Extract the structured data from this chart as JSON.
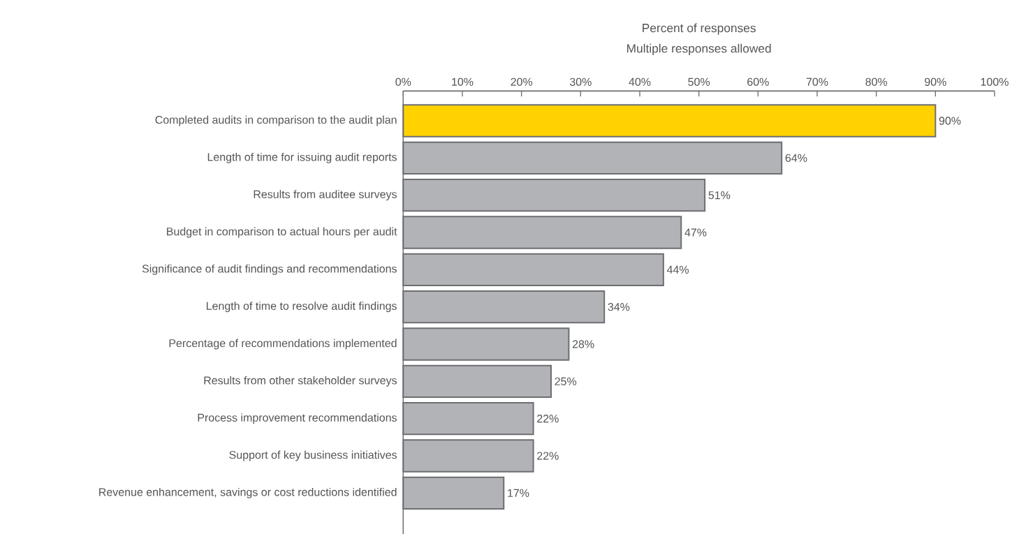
{
  "chart_data": {
    "type": "bar",
    "orientation": "horizontal",
    "xlabel": "Percent of responses",
    "subtitle": "Multiple responses allowed",
    "categories": [
      "Completed audits in comparison to the audit plan",
      "Length of time for issuing audit reports",
      "Results from auditee surveys",
      "Budget in comparison to actual hours per audit",
      "Significance of audit findings and recommendations",
      "Length of time to resolve audit findings",
      "Percentage of recommendations implemented",
      "Results from other stakeholder surveys",
      "Process improvement recommendations",
      "Support of key business initiatives",
      "Revenue enhancement, savings or cost reductions identified"
    ],
    "values": [
      90,
      64,
      51,
      47,
      44,
      34,
      28,
      25,
      22,
      22,
      17
    ],
    "value_labels": [
      "90%",
      "64%",
      "51%",
      "47%",
      "44%",
      "34%",
      "28%",
      "25%",
      "22%",
      "22%",
      "17%"
    ],
    "colors": [
      "#ffd200",
      "#b1b3b6",
      "#b1b3b6",
      "#b1b3b6",
      "#b1b3b6",
      "#b1b3b6",
      "#b1b3b6",
      "#b1b3b6",
      "#b1b3b6",
      "#b1b3b6",
      "#b1b3b6"
    ],
    "xlim": [
      0,
      100
    ],
    "xticks": [
      {
        "value": 0,
        "label": "0%"
      },
      {
        "value": 10,
        "label": "10%"
      },
      {
        "value": 20,
        "label": "20%"
      },
      {
        "value": 30,
        "label": "30%"
      },
      {
        "value": 40,
        "label": "40%"
      },
      {
        "value": 50,
        "label": "50%"
      },
      {
        "value": 60,
        "label": "60%"
      },
      {
        "value": 70,
        "label": "70%"
      },
      {
        "value": 80,
        "label": "80%"
      },
      {
        "value": 90,
        "label": "90%"
      },
      {
        "value": 100,
        "label": "100%"
      }
    ]
  }
}
